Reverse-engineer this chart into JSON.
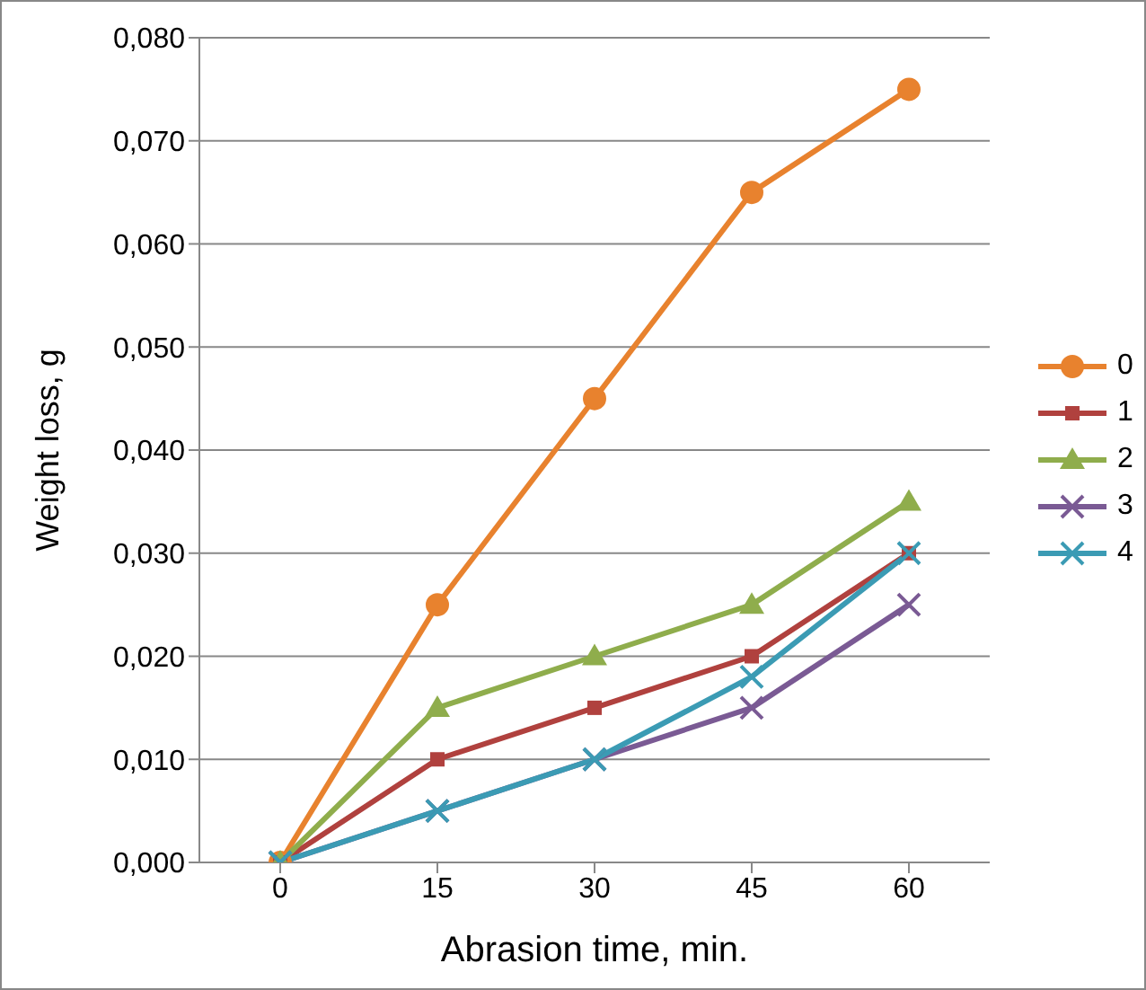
{
  "chart_data": {
    "type": "line",
    "xlabel": "Abrasion time, min.",
    "ylabel": "Weight loss, g",
    "categories": [
      "0",
      "15",
      "30",
      "45",
      "60"
    ],
    "series": [
      {
        "name": "0",
        "color": "#e8822e",
        "marker": "circle",
        "values": [
          0,
          0.025,
          0.045,
          0.065,
          0.075
        ]
      },
      {
        "name": "1",
        "color": "#b0413e",
        "marker": "square",
        "values": [
          0,
          0.01,
          0.015,
          0.02,
          0.03
        ]
      },
      {
        "name": "2",
        "color": "#8fad4c",
        "marker": "triangle",
        "values": [
          0,
          0.015,
          0.02,
          0.025,
          0.035
        ]
      },
      {
        "name": "3",
        "color": "#7a5a94",
        "marker": "cross",
        "values": [
          0,
          0.005,
          0.01,
          0.015,
          0.025
        ]
      },
      {
        "name": "4",
        "color": "#3b9bb4",
        "marker": "cross",
        "values": [
          0,
          0.005,
          0.01,
          0.018,
          0.03
        ]
      }
    ],
    "ylim": [
      0,
      0.08
    ],
    "yticks": [
      {
        "value": 0,
        "label": "0,000"
      },
      {
        "value": 0.01,
        "label": "0,010"
      },
      {
        "value": 0.02,
        "label": "0,020"
      },
      {
        "value": 0.03,
        "label": "0,030"
      },
      {
        "value": 0.04,
        "label": "0,040"
      },
      {
        "value": 0.05,
        "label": "0,050"
      },
      {
        "value": 0.06,
        "label": "0,060"
      },
      {
        "value": 0.07,
        "label": "0,070"
      },
      {
        "value": 0.08,
        "label": "0,080"
      }
    ],
    "grid": "y",
    "legend": "right"
  }
}
